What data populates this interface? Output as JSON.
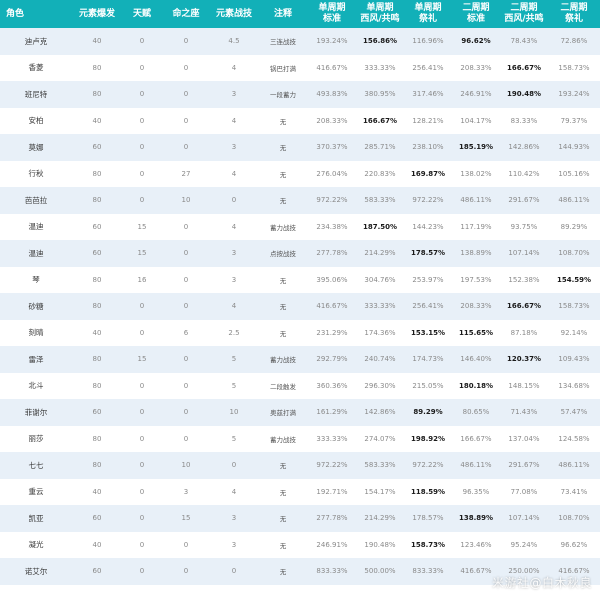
{
  "headers": [
    "角色",
    "元素爆发",
    "天赋",
    "命之座",
    "元素战技",
    "注释",
    "单周期\n标准",
    "单周期\n西风/共鸣",
    "单周期\n祭礼",
    "二周期\n标准",
    "二周期\n西风/共鸣",
    "二周期\n祭礼"
  ],
  "rows": [
    {
      "name": "迪卢克",
      "burst": "40",
      "talent": "0",
      "const": "0",
      "skill": "4.5",
      "note": "三连战技",
      "v": [
        "193.24%",
        "156.86%",
        "116.96%",
        "96.62%",
        "78.43%",
        "72.86%"
      ],
      "bold": [
        1,
        3
      ]
    },
    {
      "name": "香菱",
      "burst": "80",
      "talent": "0",
      "const": "0",
      "skill": "4",
      "note": "锅巴打满",
      "v": [
        "416.67%",
        "333.33%",
        "256.41%",
        "208.33%",
        "166.67%",
        "158.73%"
      ],
      "bold": [
        4
      ]
    },
    {
      "name": "班尼特",
      "burst": "80",
      "talent": "0",
      "const": "0",
      "skill": "3",
      "note": "一段蓄力",
      "v": [
        "493.83%",
        "380.95%",
        "317.46%",
        "246.91%",
        "190.48%",
        "193.24%"
      ],
      "bold": [
        4
      ]
    },
    {
      "name": "安柏",
      "burst": "40",
      "talent": "0",
      "const": "0",
      "skill": "4",
      "note": "无",
      "v": [
        "208.33%",
        "166.67%",
        "128.21%",
        "104.17%",
        "83.33%",
        "79.37%"
      ],
      "bold": [
        1
      ]
    },
    {
      "name": "莫娜",
      "burst": "60",
      "talent": "0",
      "const": "0",
      "skill": "3",
      "note": "无",
      "v": [
        "370.37%",
        "285.71%",
        "238.10%",
        "185.19%",
        "142.86%",
        "144.93%"
      ],
      "bold": [
        3
      ]
    },
    {
      "name": "行秋",
      "burst": "80",
      "talent": "0",
      "const": "27",
      "skill": "4",
      "note": "无",
      "v": [
        "276.04%",
        "220.83%",
        "169.87%",
        "138.02%",
        "110.42%",
        "105.16%"
      ],
      "bold": [
        2
      ]
    },
    {
      "name": "芭芭拉",
      "burst": "80",
      "talent": "0",
      "const": "10",
      "skill": "0",
      "note": "无",
      "v": [
        "972.22%",
        "583.33%",
        "972.22%",
        "486.11%",
        "291.67%",
        "486.11%"
      ],
      "bold": []
    },
    {
      "name": "温迪",
      "burst": "60",
      "talent": "15",
      "const": "0",
      "skill": "4",
      "note": "蓄力战技",
      "v": [
        "234.38%",
        "187.50%",
        "144.23%",
        "117.19%",
        "93.75%",
        "89.29%"
      ],
      "bold": [
        1
      ]
    },
    {
      "name": "温迪",
      "burst": "60",
      "talent": "15",
      "const": "0",
      "skill": "3",
      "note": "点按战技",
      "v": [
        "277.78%",
        "214.29%",
        "178.57%",
        "138.89%",
        "107.14%",
        "108.70%"
      ],
      "bold": [
        2
      ]
    },
    {
      "name": "琴",
      "burst": "80",
      "talent": "16",
      "const": "0",
      "skill": "3",
      "note": "无",
      "v": [
        "395.06%",
        "304.76%",
        "253.97%",
        "197.53%",
        "152.38%",
        "154.59%"
      ],
      "bold": [
        5
      ]
    },
    {
      "name": "砂糖",
      "burst": "80",
      "talent": "0",
      "const": "0",
      "skill": "4",
      "note": "无",
      "v": [
        "416.67%",
        "333.33%",
        "256.41%",
        "208.33%",
        "166.67%",
        "158.73%"
      ],
      "bold": [
        4
      ]
    },
    {
      "name": "刻晴",
      "burst": "40",
      "talent": "0",
      "const": "6",
      "skill": "2.5",
      "note": "无",
      "v": [
        "231.29%",
        "174.36%",
        "153.15%",
        "115.65%",
        "87.18%",
        "92.14%"
      ],
      "bold": [
        2,
        3
      ]
    },
    {
      "name": "雷泽",
      "burst": "80",
      "talent": "15",
      "const": "0",
      "skill": "5",
      "note": "蓄力战技",
      "v": [
        "292.79%",
        "240.74%",
        "174.73%",
        "146.40%",
        "120.37%",
        "109.43%"
      ],
      "bold": [
        4
      ]
    },
    {
      "name": "北斗",
      "burst": "80",
      "talent": "0",
      "const": "0",
      "skill": "5",
      "note": "二段触发",
      "v": [
        "360.36%",
        "296.30%",
        "215.05%",
        "180.18%",
        "148.15%",
        "134.68%"
      ],
      "bold": [
        3
      ]
    },
    {
      "name": "菲谢尔",
      "burst": "60",
      "talent": "0",
      "const": "0",
      "skill": "10",
      "note": "奥兹打满",
      "v": [
        "161.29%",
        "142.86%",
        "89.29%",
        "80.65%",
        "71.43%",
        "57.47%"
      ],
      "bold": [
        2
      ]
    },
    {
      "name": "丽莎",
      "burst": "80",
      "talent": "0",
      "const": "0",
      "skill": "5",
      "note": "蓄力战技",
      "v": [
        "333.33%",
        "274.07%",
        "198.92%",
        "166.67%",
        "137.04%",
        "124.58%"
      ],
      "bold": [
        2
      ]
    },
    {
      "name": "七七",
      "burst": "80",
      "talent": "0",
      "const": "10",
      "skill": "0",
      "note": "无",
      "v": [
        "972.22%",
        "583.33%",
        "972.22%",
        "486.11%",
        "291.67%",
        "486.11%"
      ],
      "bold": []
    },
    {
      "name": "重云",
      "burst": "40",
      "talent": "0",
      "const": "3",
      "skill": "4",
      "note": "无",
      "v": [
        "192.71%",
        "154.17%",
        "118.59%",
        "96.35%",
        "77.08%",
        "73.41%"
      ],
      "bold": [
        2
      ]
    },
    {
      "name": "凯亚",
      "burst": "60",
      "talent": "0",
      "const": "15",
      "skill": "3",
      "note": "无",
      "v": [
        "277.78%",
        "214.29%",
        "178.57%",
        "138.89%",
        "107.14%",
        "108.70%"
      ],
      "bold": [
        3
      ]
    },
    {
      "name": "凝光",
      "burst": "40",
      "talent": "0",
      "const": "0",
      "skill": "3",
      "note": "无",
      "v": [
        "246.91%",
        "190.48%",
        "158.73%",
        "123.46%",
        "95.24%",
        "96.62%"
      ],
      "bold": [
        2
      ]
    },
    {
      "name": "诺艾尔",
      "burst": "60",
      "talent": "0",
      "const": "0",
      "skill": "0",
      "note": "无",
      "v": [
        "833.33%",
        "500.00%",
        "833.33%",
        "416.67%",
        "250.00%",
        "416.67%"
      ],
      "bold": []
    }
  ],
  "watermark": "米游社@白木秋良",
  "colors": {
    "header_bg": "#12b0b8",
    "row_alt": "#e8f0f8"
  }
}
